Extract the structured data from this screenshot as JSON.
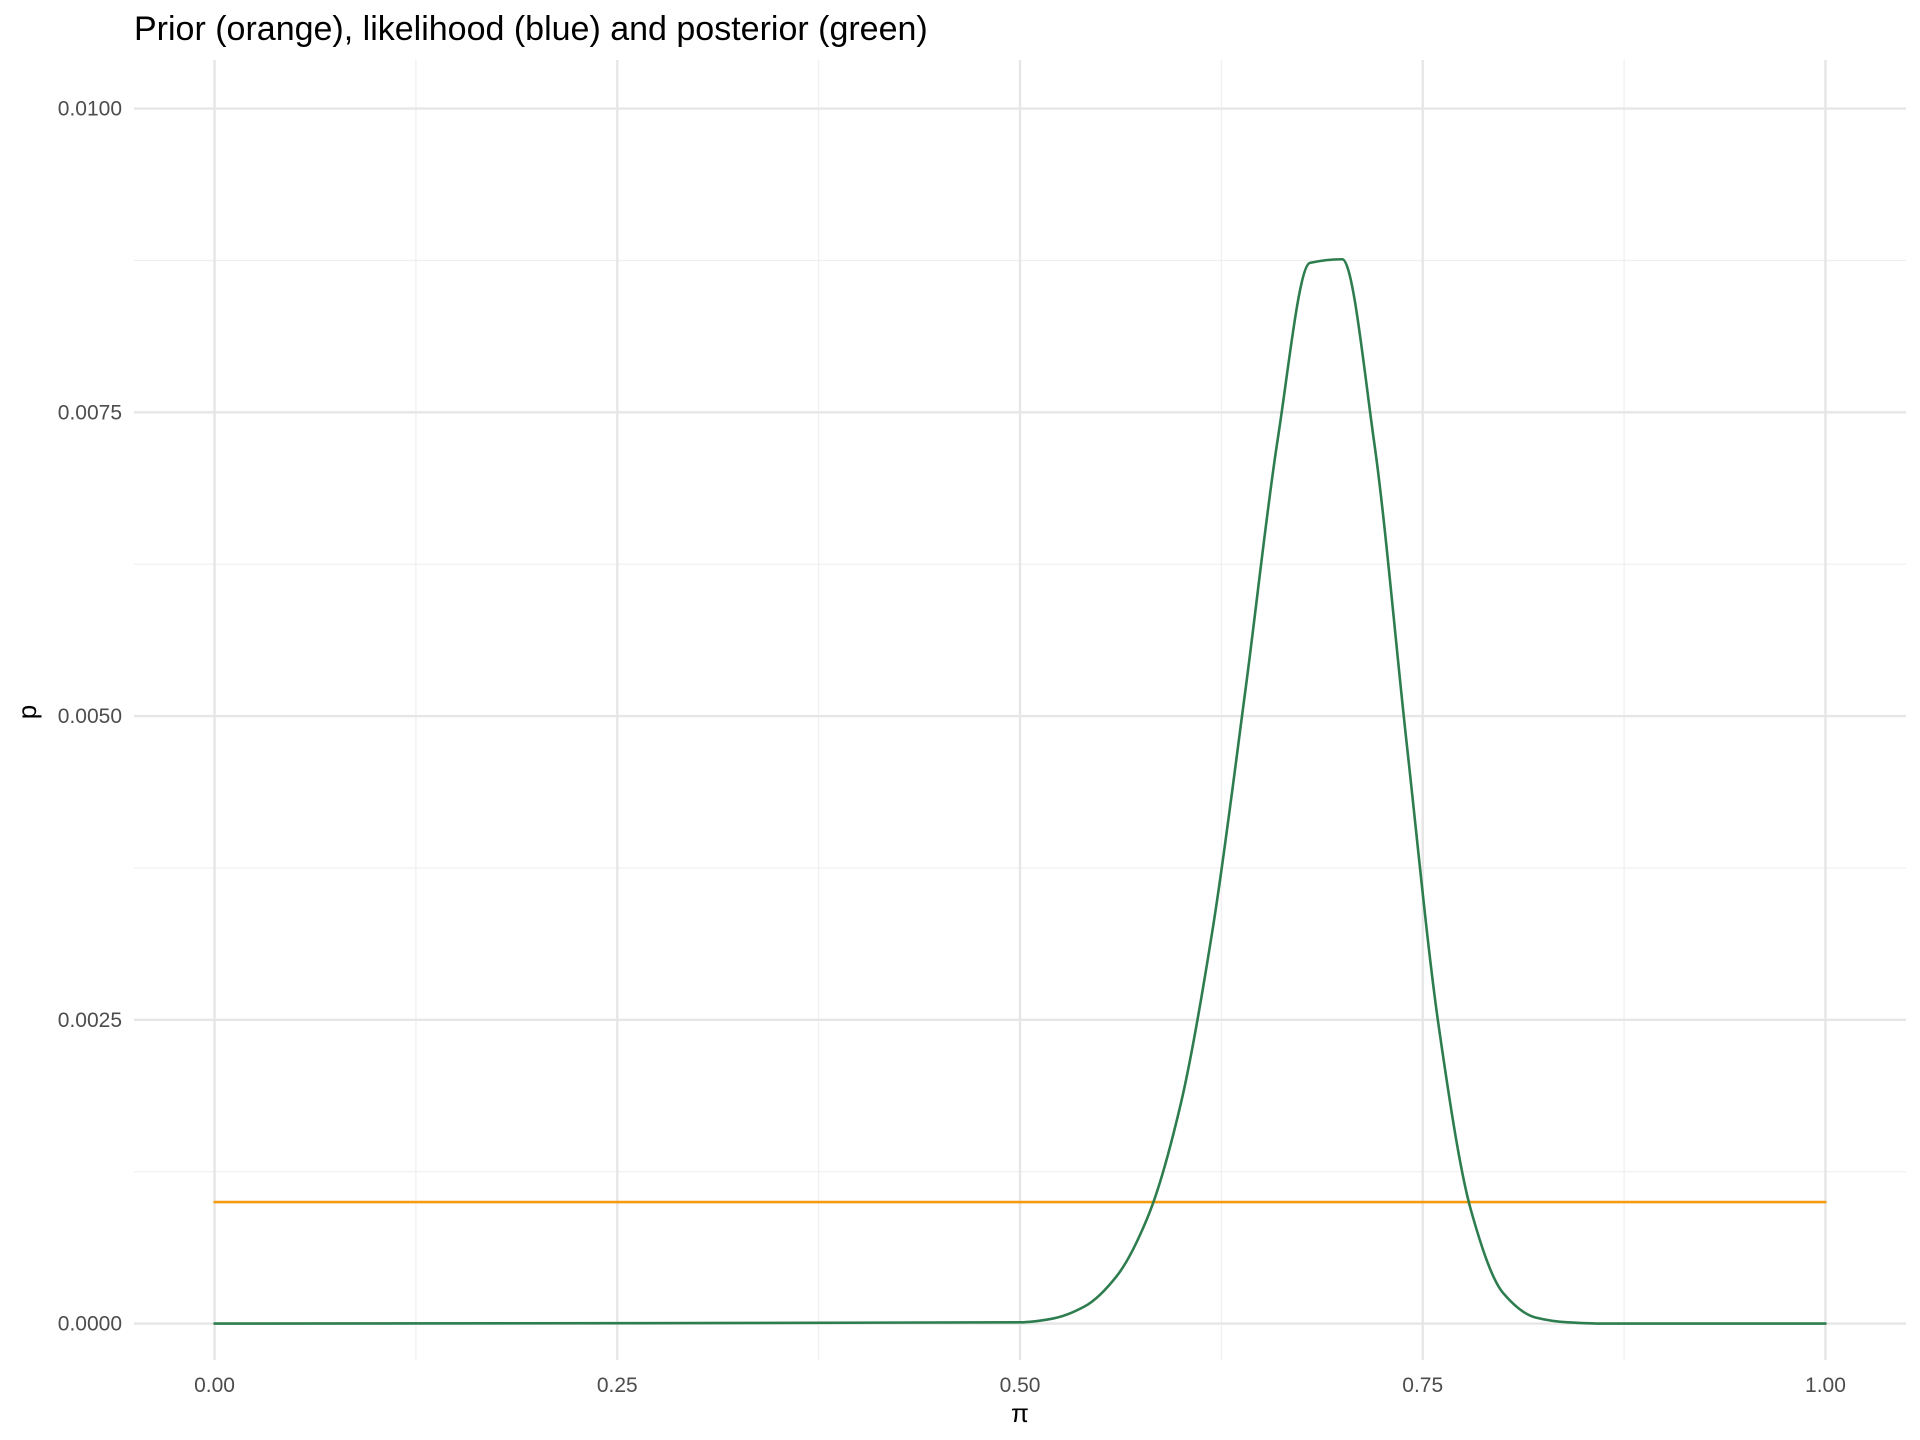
{
  "chart_data": {
    "type": "line",
    "title": "Prior (orange), likelihood (blue) and posterior (green)",
    "xlabel": "π",
    "ylabel": "p",
    "xlim": [
      -0.05,
      1.05
    ],
    "ylim": [
      -0.0003,
      0.0104
    ],
    "x_ticks": [
      0.0,
      0.25,
      0.5,
      0.75,
      1.0
    ],
    "x_tick_labels": [
      "0.00",
      "0.25",
      "0.50",
      "0.75",
      "1.00"
    ],
    "x_minor_ticks": [
      0.125,
      0.375,
      0.625,
      0.875
    ],
    "y_ticks": [
      0.0,
      0.0025,
      0.005,
      0.0075,
      0.01
    ],
    "y_tick_labels": [
      "0.0000",
      "0.0025",
      "0.0050",
      "0.0075",
      "0.0100"
    ],
    "y_minor_ticks": [
      0.00125,
      0.00375,
      0.00625,
      0.00875
    ],
    "grid": true,
    "legend": "none",
    "series": [
      {
        "color": "#f39c12",
        "x": [
          0.0,
          1.0
        ],
        "y": [
          0.001,
          0.001
        ]
      },
      {
        "color": "#2e7d4f",
        "x": [
          0.0,
          0.5,
          0.52,
          0.54,
          0.56,
          0.58,
          0.6,
          0.62,
          0.64,
          0.66,
          0.68,
          0.7,
          0.72,
          0.74,
          0.76,
          0.78,
          0.8,
          0.82,
          0.84,
          0.86,
          1.0
        ],
        "y": [
          0.0,
          1e-05,
          4e-05,
          0.00014,
          0.00039,
          0.0009,
          0.00182,
          0.00328,
          0.00522,
          0.00728,
          0.00873,
          0.00876,
          0.00724,
          0.00478,
          0.00244,
          0.00093,
          0.00025,
          5e-05,
          1e-05,
          0.0,
          0.0
        ]
      }
    ]
  }
}
